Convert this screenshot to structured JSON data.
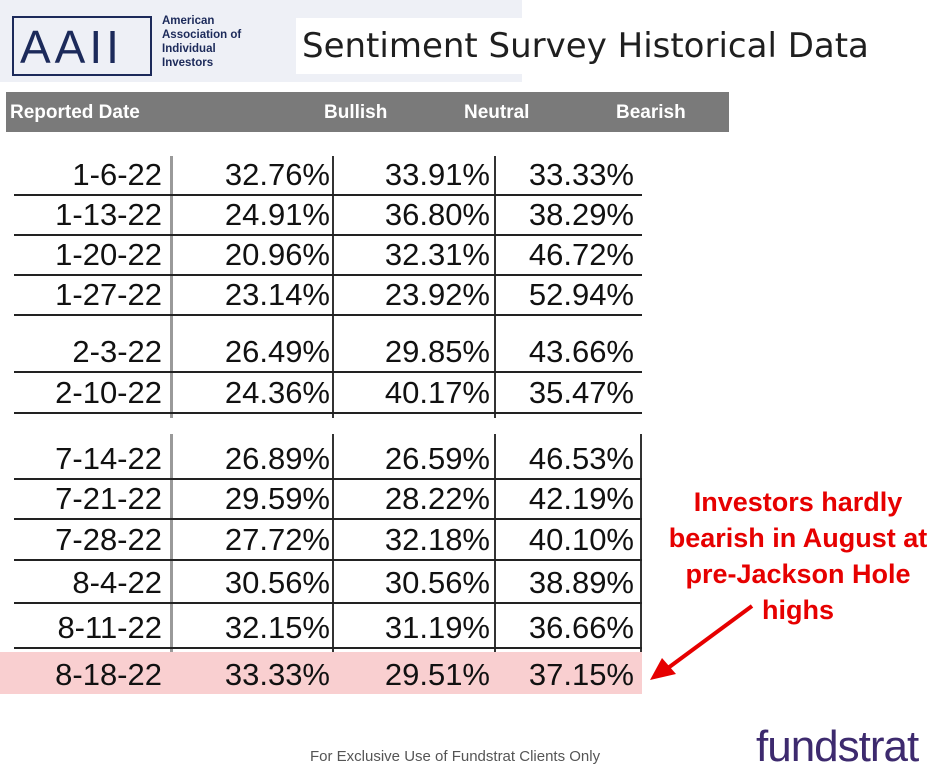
{
  "logo": {
    "letters": "AAII",
    "org_line1": "American",
    "org_line2": "Association of",
    "org_line3": "Individual",
    "org_line4": "Investors"
  },
  "title": "Sentiment Survey Historical Data",
  "header": {
    "date": "Reported Date",
    "bullish": "Bullish",
    "neutral": "Neutral",
    "bearish": "Bearish"
  },
  "rows_top": [
    {
      "date": "1-6-22",
      "bullish": "32.76%",
      "neutral": "33.91%",
      "bearish": "33.33%"
    },
    {
      "date": "1-13-22",
      "bullish": "24.91%",
      "neutral": "36.80%",
      "bearish": "38.29%"
    },
    {
      "date": "1-20-22",
      "bullish": "20.96%",
      "neutral": "32.31%",
      "bearish": "46.72%"
    },
    {
      "date": "1-27-22",
      "bullish": "23.14%",
      "neutral": "23.92%",
      "bearish": "52.94%"
    },
    {
      "date": "2-3-22",
      "bullish": "26.49%",
      "neutral": "29.85%",
      "bearish": "43.66%"
    },
    {
      "date": "2-10-22",
      "bullish": "24.36%",
      "neutral": "40.17%",
      "bearish": "35.47%"
    }
  ],
  "rows_bottom": [
    {
      "date": "7-14-22",
      "bullish": "26.89%",
      "neutral": "26.59%",
      "bearish": "46.53%"
    },
    {
      "date": "7-21-22",
      "bullish": "29.59%",
      "neutral": "28.22%",
      "bearish": "42.19%"
    },
    {
      "date": "7-28-22",
      "bullish": "27.72%",
      "neutral": "32.18%",
      "bearish": "40.10%"
    },
    {
      "date": "8-4-22",
      "bullish": "30.56%",
      "neutral": "30.56%",
      "bearish": "38.89%"
    },
    {
      "date": "8-11-22",
      "bullish": "32.15%",
      "neutral": "31.19%",
      "bearish": "36.66%"
    },
    {
      "date": "8-18-22",
      "bullish": "33.33%",
      "neutral": "29.51%",
      "bearish": "37.15%"
    }
  ],
  "callout": {
    "line1": "Investors hardly",
    "line2": "bearish in August at",
    "line3": "pre-Jackson Hole highs"
  },
  "footer": "For Exclusive Use of Fundstrat Clients Only",
  "brand": "fundstrat",
  "colors": {
    "header_bg": "#7a7a7a",
    "highlight_row": "#f9cfd0",
    "callout": "#e60000",
    "brand": "#3d2a6e"
  }
}
